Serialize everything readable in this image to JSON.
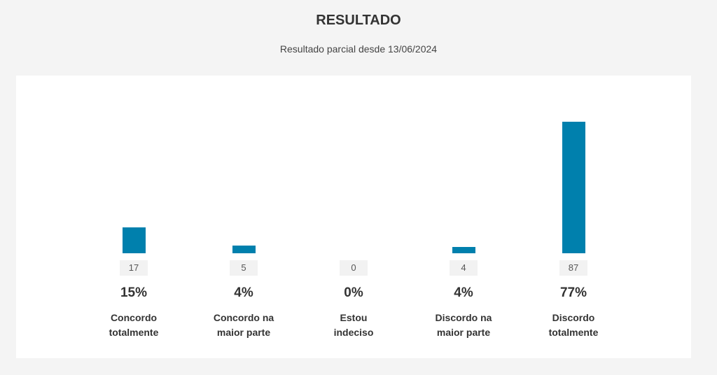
{
  "title": "RESULTADO",
  "subtitle": "Resultado parcial desde 13/06/2024",
  "chart_data": {
    "type": "bar",
    "bar_color": "#0080ad",
    "categories": [
      "Concordo totalmente",
      "Concordo na maior parte",
      "Estou indeciso",
      "Discordo na maior parte",
      "Discordo totalmente"
    ],
    "values": [
      17,
      5,
      0,
      4,
      87
    ],
    "percent_labels": [
      "15%",
      "4%",
      "0%",
      "4%",
      "77%"
    ],
    "count_labels": [
      "17",
      "5",
      "0",
      "4",
      "87"
    ],
    "label_lines": [
      [
        "Concordo",
        "totalmente"
      ],
      [
        "Concordo na",
        "maior parte"
      ],
      [
        "Estou",
        "indeciso"
      ],
      [
        "Discordo na",
        "maior parte"
      ],
      [
        "Discordo",
        "totalmente"
      ]
    ],
    "grid": false
  }
}
